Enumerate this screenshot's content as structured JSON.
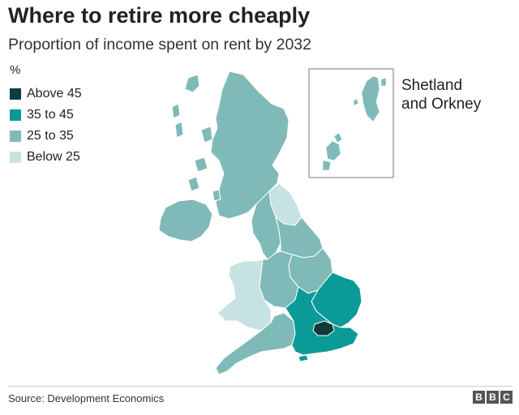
{
  "header": {
    "title": "Where to retire more cheaply",
    "subtitle": "Proportion of income spent on rent by 2032"
  },
  "legend": {
    "unit": "%",
    "items": [
      {
        "label": "Above 45",
        "color": "#0e3b3c"
      },
      {
        "label": "35 to 45",
        "color": "#0a9a97"
      },
      {
        "label": "25 to 35",
        "color": "#7fbab9"
      },
      {
        "label": "Below 25",
        "color": "#c7e2e2"
      }
    ]
  },
  "inset": {
    "label_line1": "Shetland",
    "label_line2": "and Orkney"
  },
  "footer": {
    "source": "Source: Development Economics",
    "logo_letters": [
      "B",
      "B",
      "C"
    ]
  },
  "colors": {
    "border": "#ffffff",
    "inset_border": "#777777"
  }
}
